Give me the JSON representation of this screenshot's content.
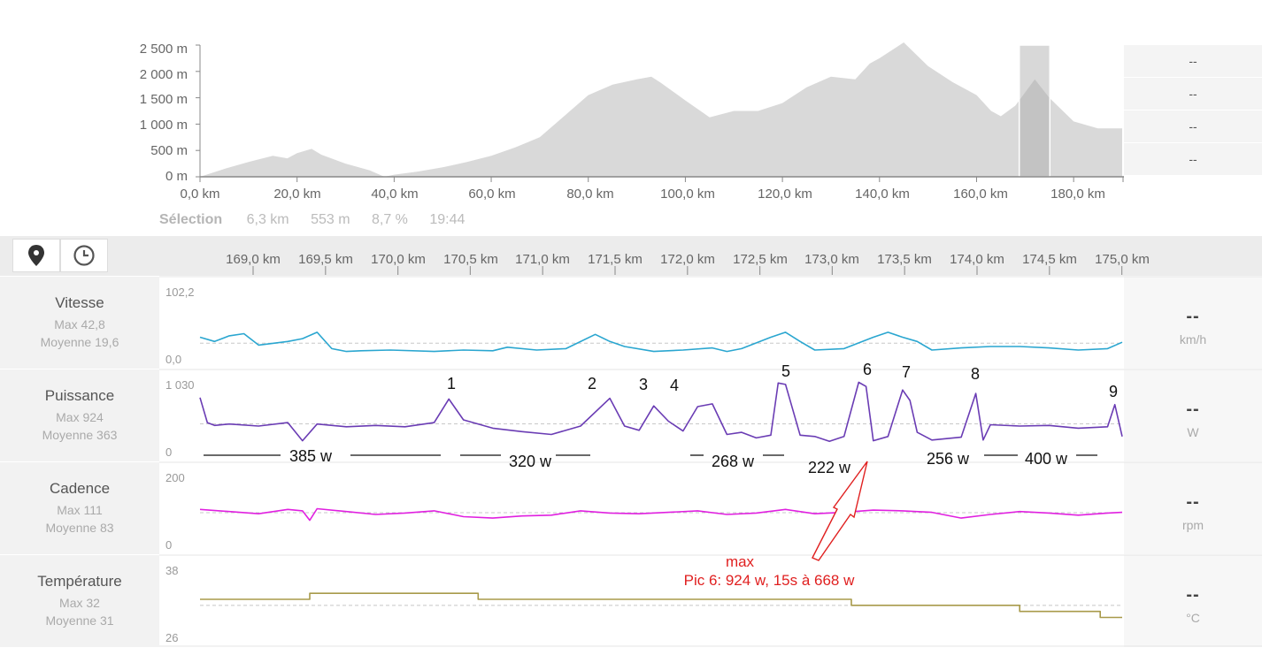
{
  "elevation": {
    "y_ticks": [
      "2 500 m",
      "2 000 m",
      "1 500 m",
      "1 000 m",
      "500 m",
      "0 m"
    ],
    "x_ticks": [
      "0,0 km",
      "20,0 km",
      "40,0 km",
      "60,0 km",
      "80,0 km",
      "100,0 km",
      "120,0 km",
      "140,0 km",
      "160,0 km",
      "180,0 km"
    ],
    "side_values": [
      "--",
      "--",
      "--",
      "--"
    ],
    "selection": {
      "label": "Sélection",
      "distance": "6,3 km",
      "elevation": "553 m",
      "grade": "8,7 %",
      "time": "19:44"
    }
  },
  "toolbar": {
    "map_icon": "map-pin-icon",
    "time_icon": "clock-icon"
  },
  "ruler": {
    "ticks": [
      "169,0 km",
      "169,5 km",
      "170,0 km",
      "170,5 km",
      "171,0 km",
      "171,5 km",
      "172,0 km",
      "172,5 km",
      "173,0 km",
      "173,5 km",
      "174,0 km",
      "174,5 km",
      "175,0 km"
    ]
  },
  "metrics": [
    {
      "name": "Vitesse",
      "max": "Max 42,8",
      "avg": "Moyenne 19,6",
      "top": "102,2",
      "bottom": "0,0",
      "value": "--",
      "unit": "km/h",
      "color": "#2aa6d0"
    },
    {
      "name": "Puissance",
      "max": "Max 924",
      "avg": "Moyenne 363",
      "top": "1 030",
      "bottom": "0",
      "value": "--",
      "unit": "W",
      "color": "#6a3cb4"
    },
    {
      "name": "Cadence",
      "max": "Max 111",
      "avg": "Moyenne 83",
      "top": "200",
      "bottom": "0",
      "value": "--",
      "unit": "rpm",
      "color": "#e020e0"
    },
    {
      "name": "Température",
      "max": "Max 32",
      "avg": "Moyenne 31",
      "top": "38",
      "bottom": "26",
      "value": "--",
      "unit": "°C",
      "color": "#a89a4a"
    }
  ],
  "annotations": {
    "peaks": [
      "1",
      "2",
      "3",
      "4",
      "5",
      "6",
      "7",
      "8",
      "9"
    ],
    "segments": [
      "385 w",
      "320 w",
      "268 w",
      "222 w",
      "256 w",
      "400 w"
    ],
    "max_label": "max",
    "max_detail": "Pic 6: 924 w, 15s à 668 w"
  },
  "chart_data": [
    {
      "type": "area",
      "title": "",
      "xlabel": "",
      "ylabel": "",
      "x_unit": "km",
      "y_unit": "m",
      "xlim": [
        0,
        190
      ],
      "ylim": [
        0,
        2500
      ],
      "x": [
        0,
        5,
        10,
        15,
        18,
        20,
        23,
        25,
        30,
        35,
        38,
        40,
        45,
        50,
        55,
        60,
        65,
        70,
        75,
        80,
        85,
        90,
        93,
        95,
        100,
        105,
        110,
        115,
        120,
        125,
        130,
        135,
        138,
        140,
        145,
        150,
        155,
        160,
        163,
        165,
        168,
        170,
        172,
        175,
        180,
        185,
        190
      ],
      "y": [
        0,
        150,
        280,
        400,
        350,
        450,
        530,
        420,
        250,
        120,
        0,
        40,
        100,
        180,
        280,
        400,
        560,
        750,
        1150,
        1550,
        1750,
        1850,
        1900,
        1780,
        1450,
        1130,
        1250,
        1250,
        1400,
        1700,
        1900,
        1850,
        2150,
        2250,
        2550,
        2100,
        1800,
        1550,
        1250,
        1150,
        1350,
        1600,
        1850,
        1500,
        1050,
        920,
        920
      ],
      "selection_range_km": [
        168.8,
        175.1
      ]
    },
    {
      "type": "line",
      "name": "Vitesse",
      "x_unit": "km",
      "xlim": [
        168.8,
        175.1
      ],
      "ylim": [
        0,
        102.2
      ],
      "x": [
        168.8,
        168.9,
        169.0,
        169.1,
        169.2,
        169.4,
        169.5,
        169.6,
        169.7,
        169.8,
        169.9,
        170.1,
        170.4,
        170.6,
        170.8,
        170.9,
        171.1,
        171.3,
        171.5,
        171.6,
        171.7,
        171.9,
        172.1,
        172.3,
        172.4,
        172.5,
        172.7,
        172.8,
        172.9,
        173.0,
        173.2,
        173.4,
        173.5,
        173.6,
        173.7,
        173.8,
        174.0,
        174.2,
        174.4,
        174.6,
        174.8,
        175.0,
        175.1
      ],
      "y": [
        28,
        22,
        30,
        33,
        17,
        22,
        26,
        35,
        12,
        8,
        9,
        10,
        8,
        10,
        9,
        14,
        10,
        12,
        32,
        22,
        15,
        8,
        10,
        13,
        8,
        12,
        28,
        35,
        22,
        10,
        12,
        28,
        35,
        28,
        22,
        10,
        13,
        15,
        15,
        13,
        10,
        12,
        21
      ],
      "mean": 19.6,
      "max": 42.8
    },
    {
      "type": "line",
      "name": "Puissance",
      "x_unit": "km",
      "xlim": [
        168.8,
        175.1
      ],
      "ylim": [
        0,
        1030
      ],
      "x": [
        168.8,
        168.85,
        168.9,
        169.0,
        169.2,
        169.4,
        169.5,
        169.6,
        169.8,
        170.0,
        170.2,
        170.4,
        170.5,
        170.6,
        170.8,
        171.0,
        171.2,
        171.4,
        171.6,
        171.7,
        171.8,
        171.9,
        172.0,
        172.1,
        172.2,
        172.3,
        172.4,
        172.5,
        172.6,
        172.7,
        172.75,
        172.8,
        172.9,
        173.0,
        173.1,
        173.2,
        173.3,
        173.35,
        173.4,
        173.5,
        173.6,
        173.65,
        173.7,
        173.8,
        174.0,
        174.1,
        174.15,
        174.2,
        174.4,
        174.6,
        174.8,
        175.0,
        175.05,
        175.1
      ],
      "y": [
        740,
        380,
        340,
        360,
        330,
        380,
        120,
        360,
        320,
        340,
        320,
        380,
        720,
        420,
        300,
        250,
        210,
        330,
        730,
        330,
        270,
        620,
        400,
        260,
        610,
        650,
        210,
        240,
        160,
        200,
        950,
        930,
        200,
        180,
        110,
        180,
        960,
        900,
        120,
        180,
        850,
        700,
        240,
        130,
        170,
        800,
        130,
        350,
        330,
        340,
        300,
        320,
        640,
        180
      ],
      "mean": 363,
      "max": 924,
      "peaks": [
        {
          "label": "1",
          "x": 170.5,
          "y": 720
        },
        {
          "label": "2",
          "x": 171.6,
          "y": 730
        },
        {
          "label": "3",
          "x": 171.9,
          "y": 620
        },
        {
          "label": "4",
          "x": 172.15,
          "y": 610
        },
        {
          "label": "5",
          "x": 172.75,
          "y": 950
        },
        {
          "label": "6",
          "x": 173.35,
          "y": 924
        },
        {
          "label": "7",
          "x": 173.65,
          "y": 850
        },
        {
          "label": "8",
          "x": 174.1,
          "y": 800
        },
        {
          "label": "9",
          "x": 175.05,
          "y": 640
        }
      ],
      "segment_averages_w": [
        385,
        320,
        268,
        222,
        256,
        400
      ]
    },
    {
      "type": "line",
      "name": "Cadence",
      "x_unit": "km",
      "xlim": [
        168.8,
        175.1
      ],
      "ylim": [
        0,
        200
      ],
      "x": [
        168.8,
        169.0,
        169.2,
        169.4,
        169.5,
        169.55,
        169.6,
        169.8,
        170.0,
        170.2,
        170.4,
        170.6,
        170.8,
        171.0,
        171.2,
        171.4,
        171.6,
        171.8,
        172.0,
        172.2,
        172.4,
        172.6,
        172.8,
        173.0,
        173.2,
        173.4,
        173.6,
        173.8,
        174.0,
        174.2,
        174.4,
        174.6,
        174.8,
        175.0,
        175.1
      ],
      "y": [
        92,
        86,
        80,
        92,
        88,
        62,
        94,
        86,
        78,
        82,
        88,
        72,
        68,
        74,
        76,
        88,
        82,
        80,
        84,
        88,
        78,
        82,
        92,
        80,
        84,
        90,
        88,
        84,
        68,
        78,
        86,
        82,
        76,
        82,
        84
      ],
      "mean": 83,
      "max": 111
    },
    {
      "type": "line",
      "name": "Température",
      "x_unit": "km",
      "xlim": [
        168.8,
        175.1
      ],
      "ylim": [
        26,
        38
      ],
      "x": [
        168.8,
        169.55,
        169.55,
        170.7,
        170.7,
        173.25,
        173.25,
        174.4,
        174.4,
        174.95,
        174.95,
        175.1
      ],
      "y": [
        32,
        32,
        33,
        33,
        32,
        32,
        31,
        31,
        30,
        30,
        29,
        29
      ],
      "mean": 31,
      "max": 32
    }
  ]
}
